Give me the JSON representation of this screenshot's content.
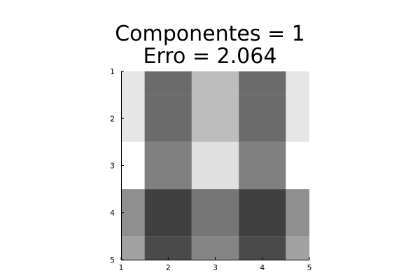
{
  "chart_data": {
    "type": "heatmap",
    "title_lines": [
      "Componentes = 1",
      "Erro = 2.064"
    ],
    "colormap": "grayscale",
    "xlabel": "",
    "ylabel": "",
    "xlim": [
      1,
      5
    ],
    "ylim": [
      1,
      5
    ],
    "y_axis": "reversed",
    "grid": false,
    "x_ticks": [
      "1",
      "2",
      "3",
      "4",
      "5"
    ],
    "y_ticks": [
      "1",
      "2",
      "3",
      "4",
      "5"
    ],
    "rows": 5,
    "cols": 5,
    "values": [
      [
        0.9,
        0.42,
        0.74,
        0.42,
        0.9
      ],
      [
        0.9,
        0.42,
        0.74,
        0.42,
        0.9
      ],
      [
        1.0,
        0.5,
        0.88,
        0.5,
        1.0
      ],
      [
        0.56,
        0.25,
        0.46,
        0.25,
        0.56
      ],
      [
        0.63,
        0.29,
        0.52,
        0.29,
        0.63
      ]
    ]
  }
}
